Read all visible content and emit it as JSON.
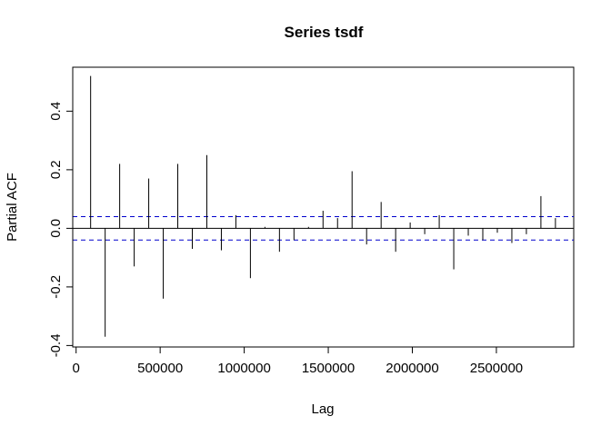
{
  "chart_data": {
    "type": "bar",
    "title": "Series  tsdf",
    "xlabel": "Lag",
    "ylabel": "Partial ACF",
    "xlim": [
      -20000,
      2960000
    ],
    "ylim": [
      -0.405,
      0.55
    ],
    "x_ticks": [
      0,
      500000,
      1000000,
      1500000,
      2000000,
      2500000
    ],
    "x_tick_labels": [
      "0",
      "500000",
      "1000000",
      "1500000",
      "2000000",
      "2500000"
    ],
    "y_ticks": [
      -0.4,
      -0.2,
      0.0,
      0.2,
      0.4
    ],
    "y_tick_labels": [
      "-0.4",
      "-0.2",
      "0.0",
      "0.2",
      "0.4"
    ],
    "confidence_limit": 0.04,
    "colors": {
      "bars": "#000000",
      "confidence": "#0000cd",
      "zero_line": "#000000"
    },
    "lags": [
      86400,
      172800,
      259200,
      345600,
      432000,
      518400,
      604800,
      691200,
      777600,
      864000,
      950400,
      1036800,
      1123200,
      1209600,
      1296000,
      1382400,
      1468800,
      1555200,
      1641600,
      1728000,
      1814400,
      1900800,
      1987200,
      2073600,
      2160000,
      2246400,
      2332800,
      2419200,
      2505600,
      2592000,
      2678400,
      2764800,
      2851200
    ],
    "values": [
      0.52,
      -0.37,
      0.22,
      -0.13,
      0.17,
      -0.24,
      0.22,
      -0.07,
      0.25,
      -0.075,
      0.045,
      -0.17,
      0.005,
      -0.08,
      -0.04,
      0.005,
      0.06,
      0.035,
      0.195,
      -0.055,
      0.09,
      -0.08,
      0.02,
      -0.02,
      0.045,
      -0.14,
      -0.025,
      -0.04,
      -0.015,
      -0.05,
      -0.02,
      0.11,
      0.035
    ]
  }
}
